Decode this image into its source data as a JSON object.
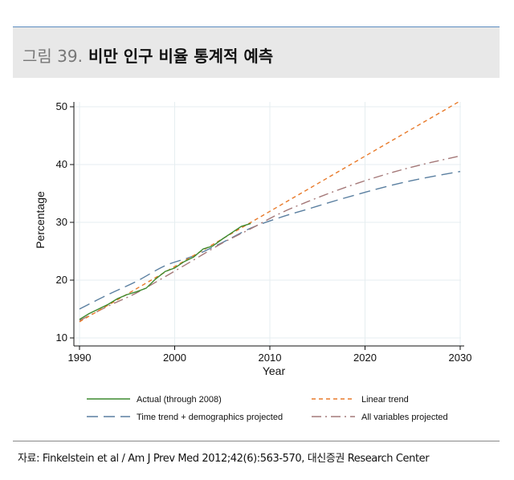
{
  "figure": {
    "number": "그림 39.",
    "title": "비만 인구 비율 통계적 예측"
  },
  "source": "자료: Finkelstein et al / Am J Prev Med 2012;42(6):563-570, 대신증권 Research Center",
  "chart_data": {
    "type": "line",
    "xlabel": "Year",
    "ylabel": "Percentage",
    "xlim": [
      1990,
      2030
    ],
    "ylim": [
      10,
      52
    ],
    "xticks": [
      1990,
      2000,
      2010,
      2020,
      2030
    ],
    "yticks": [
      10,
      20,
      30,
      40,
      50
    ],
    "grid": true,
    "legend": "bottom",
    "series": [
      {
        "name": "Actual (through 2008)",
        "color": "#3c8a2e",
        "dash": "solid",
        "x": [
          1990,
          1991,
          1992,
          1993,
          1994,
          1995,
          1996,
          1997,
          1998,
          1999,
          2000,
          2001,
          2002,
          2003,
          2004,
          2005,
          2006,
          2007,
          2008
        ],
        "y": [
          13.2,
          14.2,
          15.0,
          15.8,
          16.8,
          17.5,
          18.0,
          18.6,
          20.2,
          21.5,
          22.1,
          23.2,
          24.0,
          25.4,
          25.9,
          27.1,
          28.2,
          29.3,
          29.8
        ]
      },
      {
        "name": "Linear trend",
        "color": "#e87a2a",
        "dash": "dashed",
        "x": [
          1990,
          2030
        ],
        "y": [
          12.8,
          51.0
        ]
      },
      {
        "name": "Time trend + demographics projected",
        "color": "#5a7fa0",
        "dash": "longdash",
        "x": [
          1990,
          1993,
          1996,
          1999,
          2002,
          2005,
          2008,
          2011,
          2014,
          2017,
          2020,
          2023,
          2026,
          2030
        ],
        "y": [
          15.0,
          17.5,
          19.8,
          22.5,
          24.2,
          26.5,
          29.0,
          30.8,
          32.3,
          33.8,
          35.2,
          36.5,
          37.6,
          38.8
        ]
      },
      {
        "name": "All variables projected",
        "color": "#a47878",
        "dash": "dashdot",
        "x": [
          1990,
          1993,
          1996,
          1999,
          2002,
          2005,
          2008,
          2011,
          2014,
          2017,
          2020,
          2023,
          2026,
          2030
        ],
        "y": [
          13.0,
          15.5,
          17.8,
          20.6,
          23.5,
          26.4,
          28.9,
          31.5,
          33.6,
          35.5,
          37.2,
          38.7,
          40.0,
          41.5
        ]
      }
    ]
  }
}
